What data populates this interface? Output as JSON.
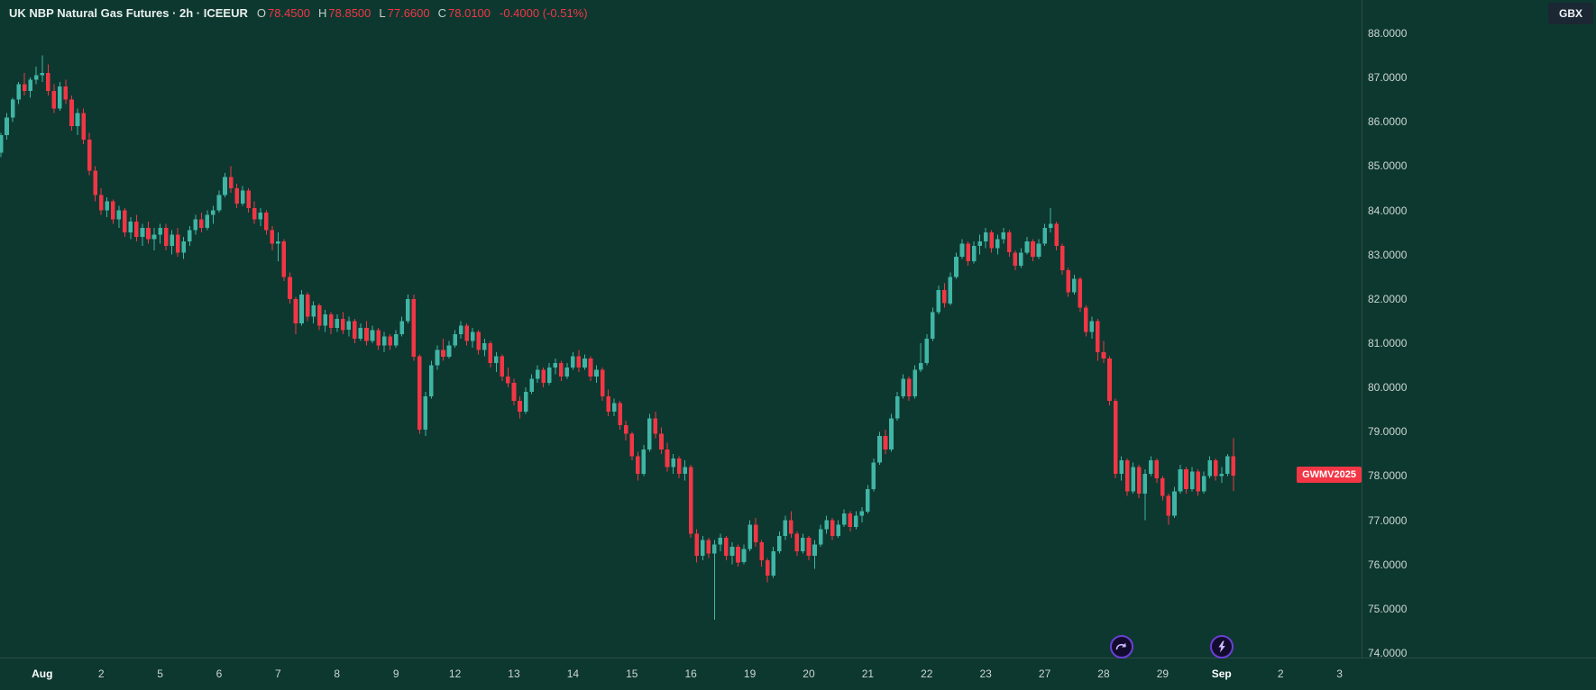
{
  "header": {
    "title": "UK NBP Natural Gas Futures · 2h · ICEEUR",
    "ohlc": {
      "o_label": "O",
      "o_value": "78.4500",
      "h_label": "H",
      "h_value": "78.8500",
      "l_label": "L",
      "l_value": "77.6600",
      "c_label": "C",
      "c_value": "78.0100"
    },
    "change": "-0.4000 (-0.51%)"
  },
  "price_axis": {
    "currency": "GBX",
    "symbol_tag": "GWMV2025",
    "symbol_tag_price": 78.01,
    "ticks": [
      "88.0000",
      "87.0000",
      "86.0000",
      "85.0000",
      "84.0000",
      "83.0000",
      "82.0000",
      "81.0000",
      "80.0000",
      "79.0000",
      "78.0000",
      "77.0000",
      "76.0000",
      "75.0000",
      "74.0000"
    ]
  },
  "time_axis": {
    "labels": [
      {
        "i": 7,
        "t": "Aug",
        "major": true
      },
      {
        "i": 17,
        "t": "2"
      },
      {
        "i": 27,
        "t": "5"
      },
      {
        "i": 37,
        "t": "6"
      },
      {
        "i": 47,
        "t": "7"
      },
      {
        "i": 57,
        "t": "8"
      },
      {
        "i": 67,
        "t": "9"
      },
      {
        "i": 77,
        "t": "12"
      },
      {
        "i": 87,
        "t": "13"
      },
      {
        "i": 97,
        "t": "14"
      },
      {
        "i": 107,
        "t": "15"
      },
      {
        "i": 117,
        "t": "16"
      },
      {
        "i": 127,
        "t": "19"
      },
      {
        "i": 137,
        "t": "20"
      },
      {
        "i": 147,
        "t": "21"
      },
      {
        "i": 157,
        "t": "22"
      },
      {
        "i": 167,
        "t": "23"
      },
      {
        "i": 177,
        "t": "27"
      },
      {
        "i": 187,
        "t": "28"
      },
      {
        "i": 197,
        "t": "29"
      },
      {
        "i": 207,
        "t": "Sep",
        "major": true
      },
      {
        "i": 217,
        "t": "2"
      },
      {
        "i": 227,
        "t": "3"
      }
    ]
  },
  "markers": [
    {
      "i": 190,
      "icon": "jump-arrow-icon"
    },
    {
      "i": 207,
      "icon": "lightning-icon"
    }
  ],
  "colors": {
    "background": "#0d3830",
    "panel_border": "#2e4b43",
    "up": "#40b5a5",
    "down": "#f23645",
    "text_primary": "#e9f0ed",
    "text_axis": "#ccd6d2",
    "text_label": "#c3cfca",
    "tag_bg": "#f23645",
    "tag_text": "#ffffff",
    "currency_bg": "#1b2733",
    "marker_ring": "#6b3fd4",
    "marker_bg": "#120b2e",
    "marker_glyph": "#cdbcff"
  },
  "chart_data": {
    "type": "candlestick",
    "title": "UK NBP Natural Gas Futures",
    "exchange": "ICEEUR",
    "interval": "2h",
    "symbol": "GWMV2025",
    "currency": "GBX",
    "ylim": [
      74,
      88
    ],
    "grid": false,
    "last": {
      "open": 78.45,
      "high": 78.85,
      "low": 77.66,
      "close": 78.01,
      "change": -0.4,
      "change_pct": -0.51
    },
    "candles": [
      [
        85.3,
        85.75,
        85.2,
        85.7
      ],
      [
        85.7,
        86.2,
        85.6,
        86.1
      ],
      [
        86.1,
        86.55,
        86.0,
        86.5
      ],
      [
        86.5,
        86.9,
        86.4,
        86.85
      ],
      [
        86.85,
        87.1,
        86.6,
        86.7
      ],
      [
        86.7,
        87.0,
        86.55,
        86.95
      ],
      [
        86.95,
        87.25,
        86.85,
        87.05
      ],
      [
        87.05,
        87.5,
        86.9,
        87.1
      ],
      [
        87.1,
        87.3,
        86.6,
        86.7
      ],
      [
        86.7,
        86.85,
        86.2,
        86.3
      ],
      [
        86.3,
        86.9,
        86.25,
        86.8
      ],
      [
        86.8,
        86.95,
        86.4,
        86.5
      ],
      [
        86.5,
        86.6,
        85.8,
        85.9
      ],
      [
        85.9,
        86.3,
        85.7,
        86.2
      ],
      [
        86.2,
        86.3,
        85.5,
        85.6
      ],
      [
        85.6,
        85.75,
        84.8,
        84.9
      ],
      [
        84.9,
        85.0,
        84.2,
        84.35
      ],
      [
        84.35,
        84.5,
        83.9,
        84.0
      ],
      [
        84.0,
        84.3,
        83.85,
        84.2
      ],
      [
        84.2,
        84.25,
        83.7,
        83.8
      ],
      [
        83.8,
        84.1,
        83.6,
        84.0
      ],
      [
        84.0,
        84.05,
        83.4,
        83.5
      ],
      [
        83.5,
        83.85,
        83.35,
        83.75
      ],
      [
        83.75,
        83.9,
        83.3,
        83.4
      ],
      [
        83.4,
        83.7,
        83.2,
        83.6
      ],
      [
        83.6,
        83.75,
        83.25,
        83.35
      ],
      [
        83.35,
        83.6,
        83.1,
        83.45
      ],
      [
        83.45,
        83.7,
        83.25,
        83.6
      ],
      [
        83.6,
        83.7,
        83.1,
        83.2
      ],
      [
        83.2,
        83.55,
        83.0,
        83.45
      ],
      [
        83.45,
        83.6,
        82.95,
        83.05
      ],
      [
        83.05,
        83.4,
        82.9,
        83.3
      ],
      [
        83.3,
        83.65,
        83.2,
        83.55
      ],
      [
        83.55,
        83.9,
        83.45,
        83.8
      ],
      [
        83.8,
        83.95,
        83.5,
        83.6
      ],
      [
        83.6,
        84.0,
        83.55,
        83.9
      ],
      [
        83.9,
        84.1,
        83.7,
        84.0
      ],
      [
        84.0,
        84.45,
        83.95,
        84.35
      ],
      [
        84.35,
        84.85,
        84.3,
        84.75
      ],
      [
        84.75,
        85.0,
        84.4,
        84.5
      ],
      [
        84.5,
        84.6,
        84.05,
        84.15
      ],
      [
        84.15,
        84.55,
        84.1,
        84.45
      ],
      [
        84.45,
        84.5,
        83.95,
        84.05
      ],
      [
        84.05,
        84.2,
        83.7,
        83.8
      ],
      [
        83.8,
        84.05,
        83.65,
        83.95
      ],
      [
        83.95,
        84.0,
        83.45,
        83.55
      ],
      [
        83.55,
        83.65,
        83.1,
        83.25
      ],
      [
        83.25,
        83.5,
        82.85,
        83.3
      ],
      [
        83.3,
        83.35,
        82.4,
        82.5
      ],
      [
        82.5,
        82.6,
        81.9,
        82.0
      ],
      [
        82.0,
        82.05,
        81.2,
        81.45
      ],
      [
        81.45,
        82.2,
        81.4,
        82.1
      ],
      [
        82.1,
        82.15,
        81.5,
        81.6
      ],
      [
        81.6,
        81.95,
        81.45,
        81.85
      ],
      [
        81.85,
        81.9,
        81.3,
        81.4
      ],
      [
        81.4,
        81.75,
        81.25,
        81.65
      ],
      [
        81.65,
        81.7,
        81.2,
        81.35
      ],
      [
        81.35,
        81.65,
        81.25,
        81.55
      ],
      [
        81.55,
        81.7,
        81.2,
        81.3
      ],
      [
        81.3,
        81.6,
        81.15,
        81.5
      ],
      [
        81.5,
        81.55,
        81.0,
        81.1
      ],
      [
        81.1,
        81.45,
        81.05,
        81.35
      ],
      [
        81.35,
        81.5,
        80.95,
        81.05
      ],
      [
        81.05,
        81.4,
        81.0,
        81.3
      ],
      [
        81.3,
        81.35,
        80.85,
        80.95
      ],
      [
        80.95,
        81.25,
        80.8,
        81.15
      ],
      [
        81.15,
        81.2,
        80.85,
        80.95
      ],
      [
        80.95,
        81.3,
        80.9,
        81.2
      ],
      [
        81.2,
        81.6,
        81.15,
        81.5
      ],
      [
        81.5,
        82.1,
        81.45,
        82.0
      ],
      [
        82.0,
        82.1,
        80.6,
        80.7
      ],
      [
        80.7,
        80.75,
        78.95,
        79.05
      ],
      [
        79.05,
        79.9,
        78.9,
        79.8
      ],
      [
        79.8,
        80.6,
        79.75,
        80.5
      ],
      [
        80.5,
        80.95,
        80.4,
        80.85
      ],
      [
        80.85,
        81.1,
        80.6,
        80.7
      ],
      [
        80.7,
        81.05,
        80.65,
        80.95
      ],
      [
        80.95,
        81.3,
        80.9,
        81.2
      ],
      [
        81.2,
        81.5,
        81.1,
        81.4
      ],
      [
        81.4,
        81.45,
        80.95,
        81.05
      ],
      [
        81.05,
        81.35,
        80.9,
        81.25
      ],
      [
        81.25,
        81.3,
        80.75,
        80.85
      ],
      [
        80.85,
        81.1,
        80.7,
        81.0
      ],
      [
        81.0,
        81.05,
        80.45,
        80.55
      ],
      [
        80.55,
        80.8,
        80.35,
        80.7
      ],
      [
        80.7,
        80.75,
        80.15,
        80.25
      ],
      [
        80.25,
        80.45,
        80.0,
        80.1
      ],
      [
        80.1,
        80.2,
        79.6,
        79.7
      ],
      [
        79.7,
        79.8,
        79.3,
        79.45
      ],
      [
        79.45,
        80.0,
        79.4,
        79.9
      ],
      [
        79.9,
        80.3,
        79.85,
        80.2
      ],
      [
        80.2,
        80.5,
        80.1,
        80.4
      ],
      [
        80.4,
        80.45,
        80.0,
        80.1
      ],
      [
        80.1,
        80.55,
        80.05,
        80.45
      ],
      [
        80.45,
        80.65,
        80.3,
        80.55
      ],
      [
        80.55,
        80.6,
        80.15,
        80.25
      ],
      [
        80.25,
        80.55,
        80.2,
        80.45
      ],
      [
        80.45,
        80.8,
        80.4,
        80.7
      ],
      [
        80.7,
        80.85,
        80.35,
        80.45
      ],
      [
        80.45,
        80.75,
        80.4,
        80.65
      ],
      [
        80.65,
        80.7,
        80.15,
        80.25
      ],
      [
        80.25,
        80.5,
        80.1,
        80.4
      ],
      [
        80.4,
        80.45,
        79.7,
        79.8
      ],
      [
        79.8,
        79.95,
        79.35,
        79.45
      ],
      [
        79.45,
        79.75,
        79.35,
        79.65
      ],
      [
        79.65,
        79.7,
        79.05,
        79.15
      ],
      [
        79.15,
        79.25,
        78.8,
        78.95
      ],
      [
        78.95,
        79.0,
        78.35,
        78.45
      ],
      [
        78.45,
        78.55,
        77.9,
        78.05
      ],
      [
        78.05,
        78.7,
        78.0,
        78.6
      ],
      [
        78.6,
        79.4,
        78.55,
        79.3
      ],
      [
        79.3,
        79.45,
        78.85,
        78.95
      ],
      [
        78.95,
        79.1,
        78.5,
        78.6
      ],
      [
        78.6,
        78.75,
        78.1,
        78.2
      ],
      [
        78.2,
        78.5,
        78.05,
        78.4
      ],
      [
        78.4,
        78.45,
        77.95,
        78.05
      ],
      [
        78.05,
        78.35,
        77.9,
        78.2
      ],
      [
        78.2,
        78.25,
        76.6,
        76.7
      ],
      [
        76.7,
        76.8,
        76.05,
        76.2
      ],
      [
        76.2,
        76.65,
        76.1,
        76.55
      ],
      [
        76.55,
        76.6,
        76.15,
        76.25
      ],
      [
        76.25,
        76.55,
        74.75,
        76.45
      ],
      [
        76.45,
        76.7,
        76.3,
        76.6
      ],
      [
        76.6,
        76.65,
        76.1,
        76.2
      ],
      [
        76.2,
        76.5,
        76.0,
        76.4
      ],
      [
        76.4,
        76.45,
        75.95,
        76.05
      ],
      [
        76.05,
        76.45,
        76.0,
        76.35
      ],
      [
        76.35,
        77.0,
        76.3,
        76.9
      ],
      [
        76.9,
        77.05,
        76.4,
        76.5
      ],
      [
        76.5,
        76.55,
        75.95,
        76.1
      ],
      [
        76.1,
        76.15,
        75.6,
        75.75
      ],
      [
        75.75,
        76.4,
        75.7,
        76.3
      ],
      [
        76.3,
        76.75,
        76.25,
        76.65
      ],
      [
        76.65,
        77.1,
        76.55,
        77.0
      ],
      [
        77.0,
        77.2,
        76.6,
        76.7
      ],
      [
        76.7,
        76.75,
        76.2,
        76.3
      ],
      [
        76.3,
        76.7,
        76.25,
        76.6
      ],
      [
        76.6,
        76.65,
        76.1,
        76.2
      ],
      [
        76.2,
        76.55,
        75.9,
        76.45
      ],
      [
        76.45,
        76.9,
        76.4,
        76.8
      ],
      [
        76.8,
        77.1,
        76.7,
        77.0
      ],
      [
        77.0,
        77.05,
        76.55,
        76.65
      ],
      [
        76.65,
        77.0,
        76.6,
        76.9
      ],
      [
        76.9,
        77.25,
        76.85,
        77.15
      ],
      [
        77.15,
        77.2,
        76.75,
        76.85
      ],
      [
        76.85,
        77.2,
        76.8,
        77.1
      ],
      [
        77.1,
        77.3,
        76.95,
        77.2
      ],
      [
        77.2,
        77.8,
        77.15,
        77.7
      ],
      [
        77.7,
        78.4,
        77.65,
        78.3
      ],
      [
        78.3,
        79.0,
        78.25,
        78.9
      ],
      [
        78.9,
        79.05,
        78.5,
        78.6
      ],
      [
        78.6,
        79.4,
        78.55,
        79.3
      ],
      [
        79.3,
        79.9,
        79.25,
        79.8
      ],
      [
        79.8,
        80.3,
        79.75,
        80.2
      ],
      [
        80.2,
        80.25,
        79.7,
        79.8
      ],
      [
        79.8,
        80.5,
        79.75,
        80.4
      ],
      [
        80.4,
        81.0,
        80.35,
        80.55
      ],
      [
        80.55,
        81.2,
        80.5,
        81.1
      ],
      [
        81.1,
        81.8,
        81.05,
        81.7
      ],
      [
        81.7,
        82.3,
        81.65,
        82.2
      ],
      [
        82.2,
        82.35,
        81.8,
        81.9
      ],
      [
        81.9,
        82.6,
        81.85,
        82.5
      ],
      [
        82.5,
        83.05,
        82.45,
        82.95
      ],
      [
        82.95,
        83.35,
        82.9,
        83.25
      ],
      [
        83.25,
        83.3,
        82.75,
        82.85
      ],
      [
        82.85,
        83.3,
        82.8,
        83.2
      ],
      [
        83.2,
        83.45,
        83.0,
        83.3
      ],
      [
        83.3,
        83.6,
        83.15,
        83.5
      ],
      [
        83.5,
        83.55,
        83.05,
        83.15
      ],
      [
        83.15,
        83.45,
        83.0,
        83.35
      ],
      [
        83.35,
        83.6,
        83.25,
        83.5
      ],
      [
        83.5,
        83.55,
        82.95,
        83.05
      ],
      [
        83.05,
        83.1,
        82.65,
        82.75
      ],
      [
        82.75,
        83.15,
        82.7,
        83.05
      ],
      [
        83.05,
        83.4,
        83.0,
        83.3
      ],
      [
        83.3,
        83.35,
        82.85,
        82.95
      ],
      [
        82.95,
        83.35,
        82.9,
        83.25
      ],
      [
        83.25,
        83.7,
        83.2,
        83.6
      ],
      [
        83.6,
        84.05,
        83.5,
        83.7
      ],
      [
        83.7,
        83.75,
        83.1,
        83.2
      ],
      [
        83.2,
        83.25,
        82.55,
        82.65
      ],
      [
        82.65,
        82.7,
        82.05,
        82.15
      ],
      [
        82.15,
        82.55,
        82.1,
        82.45
      ],
      [
        82.45,
        82.5,
        81.7,
        81.8
      ],
      [
        81.8,
        81.85,
        81.15,
        81.25
      ],
      [
        81.25,
        81.6,
        81.1,
        81.5
      ],
      [
        81.5,
        81.55,
        80.6,
        80.8
      ],
      [
        80.8,
        81.05,
        80.55,
        80.65
      ],
      [
        80.65,
        80.7,
        79.6,
        79.7
      ],
      [
        79.7,
        79.75,
        77.95,
        78.05
      ],
      [
        78.05,
        78.45,
        77.9,
        78.35
      ],
      [
        78.35,
        78.4,
        77.55,
        77.65
      ],
      [
        77.65,
        78.3,
        77.6,
        78.2
      ],
      [
        78.2,
        78.25,
        77.5,
        77.6
      ],
      [
        77.6,
        78.15,
        77.0,
        78.05
      ],
      [
        78.05,
        78.45,
        78.0,
        78.35
      ],
      [
        78.35,
        78.4,
        77.85,
        77.95
      ],
      [
        77.95,
        78.0,
        77.45,
        77.55
      ],
      [
        77.55,
        77.6,
        76.9,
        77.1
      ],
      [
        77.1,
        77.75,
        77.05,
        77.65
      ],
      [
        77.65,
        78.25,
        77.6,
        78.15
      ],
      [
        78.15,
        78.2,
        77.6,
        77.7
      ],
      [
        77.7,
        78.2,
        77.65,
        78.1
      ],
      [
        78.1,
        78.15,
        77.55,
        77.65
      ],
      [
        77.65,
        78.1,
        77.6,
        78.0
      ],
      [
        78.0,
        78.45,
        77.95,
        78.35
      ],
      [
        78.35,
        78.4,
        77.9,
        78.0
      ],
      [
        78.0,
        78.2,
        77.85,
        78.05
      ],
      [
        78.05,
        78.5,
        78.0,
        78.45
      ],
      [
        78.45,
        78.85,
        77.66,
        78.01
      ]
    ]
  }
}
